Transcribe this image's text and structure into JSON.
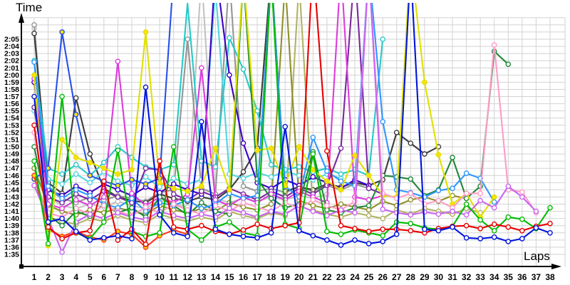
{
  "chart_data": {
    "type": "line",
    "title": "",
    "ylabel": "Time",
    "xlabel": "Laps",
    "grid": true,
    "legend_position": "none",
    "x_ticks": [
      1,
      2,
      3,
      4,
      5,
      6,
      7,
      8,
      9,
      10,
      11,
      12,
      13,
      14,
      15,
      16,
      17,
      18,
      19,
      20,
      21,
      22,
      23,
      24,
      25,
      26,
      27,
      28,
      29,
      30,
      31,
      32,
      33,
      34,
      35,
      36,
      37,
      38
    ],
    "y_tick_labels_ascending": [
      "1:35",
      "1:36",
      "1:37",
      "1:38",
      "1:39",
      "1:40",
      "1:41",
      "1:42",
      "1:43",
      "1:44",
      "1:45",
      "1:46",
      "1:47",
      "1:48",
      "1:49",
      "1:50",
      "1:51",
      "1:52",
      "1:53",
      "1:54",
      "1:55",
      "1:56",
      "1:57",
      "1:58",
      "1:59",
      "2:00",
      "2:01",
      "2:02",
      "2:03",
      "2:04",
      "2:05"
    ],
    "y_axis_min_seconds": 95,
    "y_axis_max_seconds": 125,
    "y_axis_step_seconds": 1,
    "note": "Lap time chart, ~20 series (one per driver). Values are lap times in seconds (95 = 1:35). Values above 128 s represent pit/out laps whose spikes run off the top of the plot. null = no lap recorded (retired).",
    "marker_shape": "circle",
    "series": [
      {
        "name": "silver",
        "color": "#c2c2c2",
        "marker_fill": "#ffffff",
        "lap_seconds": [
          126.5,
          103,
          101.8,
          101.4,
          102,
          101.6,
          102.4,
          101.8,
          101.4,
          102.6,
          102,
          101.6,
          134,
          102.8,
          102.2,
          102.8,
          102.4,
          103,
          102.6,
          103.2,
          102.8,
          103.4,
          null,
          null,
          null,
          null,
          null,
          null,
          null,
          null,
          null,
          null,
          null,
          null,
          null,
          null,
          null,
          null
        ]
      },
      {
        "name": "gray",
        "color": "#969696",
        "marker_fill": "#ffffff",
        "lap_seconds": [
          127,
          104,
          102.8,
          102.2,
          103,
          102.5,
          103.2,
          102.8,
          102.4,
          103.6,
          104,
          125,
          104.2,
          103.4,
          134,
          104.5,
          103.8,
          104.2,
          103.6,
          104.4,
          103.8,
          104.6,
          104,
          104.8,
          104.2,
          null,
          null,
          null,
          null,
          null,
          null,
          null,
          null,
          null,
          null,
          null,
          null,
          null
        ]
      },
      {
        "name": "black",
        "color": "#3c3c3c",
        "marker_fill": "#ffffff",
        "lap_seconds": [
          125.8,
          105,
          103.5,
          116.8,
          109,
          104.2,
          103,
          102.5,
          102.2,
          103.4,
          102.8,
          102.4,
          103,
          102.6,
          104,
          106.5,
          109.8,
          134.5,
          103.8,
          104.4,
          104,
          104.8,
          104.4,
          105,
          104.6,
          105.4,
          112,
          110.5,
          109,
          110,
          null,
          null,
          null,
          null,
          null,
          null,
          null,
          null
        ]
      },
      {
        "name": "khaki",
        "color": "#b2b264",
        "marker_fill": "#ffffff",
        "lap_seconds": [
          106,
          100.2,
          99.6,
          99.2,
          100,
          99.6,
          100.4,
          99.8,
          99.4,
          100.6,
          100,
          99.6,
          100.2,
          99.8,
          101,
          100.4,
          100,
          100.8,
          100.4,
          133,
          101.2,
          100.6,
          100.2,
          100.8,
          100.4,
          100,
          101.2,
          100.6,
          101.4,
          101,
          100.6,
          101.4,
          100.8,
          null,
          null,
          null,
          null,
          null
        ]
      },
      {
        "name": "olive",
        "color": "#8f8f2d",
        "marker_fill": "#ffffff",
        "lap_seconds": [
          107,
          101.8,
          101,
          100.5,
          101.2,
          100.8,
          101.5,
          101,
          100.6,
          101.8,
          101.2,
          100.8,
          101.4,
          101,
          102.2,
          101.6,
          101.2,
          102,
          133,
          102.5,
          101.8,
          101.4,
          102,
          101.6,
          101.2,
          102.4,
          101.8,
          102.6,
          103,
          102.4,
          103.2,
          102.8,
          null,
          null,
          null,
          null,
          null,
          null
        ]
      },
      {
        "name": "turquoise",
        "color": "#52d6e0",
        "marker_fill": "#ffffff",
        "lap_seconds": [
          115,
          105.5,
          104.8,
          106.2,
          105,
          106.5,
          105.2,
          104.6,
          105.8,
          104.4,
          105.6,
          104.8,
          105.4,
          132,
          106.2,
          105.6,
          106.4,
          105.8,
          106.6,
          106,
          105.4,
          106.2,
          105.6,
          null,
          null,
          null,
          null,
          null,
          null,
          null,
          null,
          null,
          null,
          null,
          null,
          null,
          null,
          null
        ]
      },
      {
        "name": "cyan",
        "color": "#28c8c8",
        "marker_fill": "#ffffff",
        "lap_seconds": [
          122,
          107,
          106.2,
          107.5,
          106,
          107.8,
          110,
          108.5,
          107.2,
          106.8,
          107.5,
          130,
          108,
          107.2,
          125.2,
          120.8,
          115,
          107.5,
          106.8,
          107.2,
          106.5,
          107,
          106.2,
          106.8,
          106,
          125,
          null,
          null,
          null,
          null,
          null,
          null,
          null,
          null,
          null,
          null,
          null,
          null
        ]
      },
      {
        "name": "navy",
        "color": "#3c00c8",
        "marker_fill": "#ffffff",
        "lap_seconds": [
          119,
          104,
          103.2,
          104.5,
          103.6,
          104.8,
          104,
          103.2,
          104.4,
          103.6,
          104.8,
          104,
          103.4,
          135,
          120,
          110.5,
          105,
          104.2,
          105.4,
          104.6,
          105.8,
          105,
          104.2,
          105.4,
          104.6,
          null,
          null,
          null,
          null,
          null,
          null,
          null,
          null,
          null,
          null,
          null,
          null,
          null
        ]
      },
      {
        "name": "purple",
        "color": "#7a28a0",
        "marker_fill": "#ffffff",
        "lap_seconds": [
          115.5,
          103,
          102.2,
          103.4,
          102.6,
          103.8,
          103,
          102.2,
          107,
          106.8,
          103.4,
          102.6,
          103.8,
          103,
          104.2,
          103.4,
          102.6,
          103.8,
          103,
          104.2,
          103.4,
          104.6,
          109.8,
          135,
          104.2,
          103.4,
          null,
          null,
          null,
          null,
          null,
          null,
          null,
          null,
          null,
          null,
          null,
          null
        ]
      },
      {
        "name": "magenta",
        "color": "#dc3cdc",
        "marker_fill": "#ffffff",
        "lap_seconds": [
          119.5,
          102,
          101.4,
          102.6,
          101.8,
          103,
          121.9,
          103.5,
          101.8,
          103,
          102.2,
          103.4,
          121,
          102.6,
          101.8,
          103,
          102.2,
          103.4,
          102.6,
          103.8,
          103,
          102.2,
          135,
          103,
          102.6,
          103.2,
          null,
          null,
          null,
          null,
          null,
          null,
          null,
          null,
          null,
          null,
          null,
          null
        ]
      },
      {
        "name": "blue-yellow-markers",
        "color": "#2850e6",
        "marker_fill": "#ffe000",
        "lap_seconds": [
          105.5,
          107,
          126,
          114.5,
          106,
          105.2,
          104.6,
          105.4,
          104.8,
          105.6,
          134,
          null,
          null,
          null,
          null,
          null,
          null,
          null,
          null,
          null,
          null,
          null,
          null,
          null,
          null,
          null,
          null,
          null,
          null,
          null,
          null,
          null,
          null,
          null,
          null,
          null,
          null,
          null
        ]
      },
      {
        "name": "red-yellow-markers",
        "color": "#ff3820",
        "marker_fill": "#ffe000",
        "lap_seconds": [
          106,
          98.5,
          97.5,
          98.2,
          97.4,
          97,
          98.2,
          97.8,
          96,
          97.6,
          98.4,
          97.8,
          null,
          null,
          null,
          null,
          null,
          null,
          null,
          null,
          null,
          null,
          null,
          null,
          null,
          null,
          null,
          null,
          null,
          null,
          null,
          null,
          null,
          null,
          null,
          null,
          null,
          null
        ]
      },
      {
        "name": "darkgreen",
        "color": "#208838",
        "marker_fill": "#ffffff",
        "lap_seconds": [
          110,
          100.5,
          99,
          101,
          100.3,
          102,
          100.8,
          101.5,
          100.2,
          103,
          101.8,
          100.5,
          102.2,
          101,
          100.6,
          133.5,
          105.5,
          102.8,
          101.5,
          102,
          109.3,
          101.2,
          100.8,
          101.5,
          101.8,
          106,
          105.8,
          105.5,
          103.2,
          104,
          108.5,
          102.8,
          104.5,
          123.3,
          121.5,
          null,
          null,
          null
        ]
      },
      {
        "name": "dodgerblue",
        "color": "#2e96ff",
        "marker_fill": "#ffffff",
        "lap_seconds": [
          121.8,
          104.5,
          102.8,
          104,
          103.2,
          102,
          101.5,
          102.8,
          101,
          102.2,
          101.8,
          102.6,
          101.4,
          102,
          103.5,
          102.8,
          103.2,
          134,
          104.5,
          103,
          111.3,
          106.6,
          105.2,
          104.6,
          135,
          113.5,
          104,
          103.6,
          103,
          103.9,
          104.2,
          106.3,
          105.6,
          102.3,
          null,
          null,
          null,
          null
        ]
      },
      {
        "name": "yellow",
        "color": "#e0e000",
        "marker_fill": "#ffe000",
        "lap_seconds": [
          120,
          96.2,
          111,
          108.5,
          107.8,
          107,
          106.2,
          106.8,
          126,
          105,
          104.2,
          103.8,
          104.5,
          109.8,
          104,
          134,
          109.5,
          109.8,
          104.6,
          110,
          106.8,
          105.2,
          104,
          108.8,
          106,
          103.2,
          103,
          136,
          119,
          108.9,
          102,
          103.5,
          100.2,
          103,
          null,
          null,
          null,
          null
        ]
      },
      {
        "name": "pink",
        "color": "#ff9cc8",
        "marker_fill": "#ffffff",
        "lap_seconds": [
          112,
          100.8,
          100.2,
          101.4,
          100.6,
          101.8,
          101,
          100.4,
          101.6,
          100.8,
          102,
          101.2,
          100.6,
          101.8,
          101,
          102.2,
          101.6,
          101,
          102.2,
          101.4,
          102.6,
          101.8,
          101.2,
          102.4,
          135,
          103.5,
          102.8,
          103.5,
          102,
          102.5,
          101.5,
          103.5,
          103.5,
          124.2,
          104,
          103.7,
          100.8,
          null
        ]
      },
      {
        "name": "violet",
        "color": "#c864f0",
        "marker_fill": "#ffffff",
        "lap_seconds": [
          104.6,
          100,
          95.3,
          99.5,
          100.6,
          100,
          100.8,
          100.2,
          99.8,
          101,
          100.4,
          100,
          100.6,
          100.2,
          101.4,
          100.8,
          100.2,
          101,
          100.6,
          101.8,
          101,
          100.4,
          101.2,
          100.8,
          135,
          101.3,
          100.8,
          100.5,
          100.9,
          100.6,
          101,
          100.5,
          102.5,
          101.5,
          104.5,
          103,
          101,
          null
        ]
      },
      {
        "name": "green",
        "color": "#00bc00",
        "marker_fill": "#ffffff",
        "lap_seconds": [
          108,
          96.5,
          117,
          98,
          97.2,
          99.5,
          109.5,
          98.2,
          97.5,
          98,
          110,
          98.5,
          97,
          98.8,
          99.5,
          98,
          97.6,
          134,
          99.2,
          98.6,
          109,
          98.2,
          97.8,
          98.4,
          98,
          97.6,
          99.5,
          99.3,
          98.7,
          98.5,
          98.9,
          102,
          99.8,
          98.3,
          100.2,
          99.9,
          98.6,
          101.5
        ]
      },
      {
        "name": "red",
        "color": "#e60000",
        "marker_fill": "#ffffff",
        "lap_seconds": [
          113,
          98.8,
          97.2,
          98,
          98.3,
          105.2,
          97,
          98.5,
          96.4,
          108,
          98.8,
          98.5,
          99,
          98.2,
          97.8,
          98.4,
          99.2,
          98.6,
          99,
          99.4,
          136,
          109.4,
          99,
          98.6,
          98.2,
          98.5,
          98.5,
          98.3,
          98,
          98.6,
          98.9,
          99,
          98.6,
          99.2,
          98.8,
          98.3,
          98.9,
          99.3
        ]
      },
      {
        "name": "blue",
        "color": "#0014dc",
        "marker_fill": "#ffffff",
        "lap_seconds": [
          117,
          99.5,
          100,
          98.2,
          97,
          97.3,
          97.6,
          97.2,
          118.3,
          100.5,
          98,
          97.5,
          113.5,
          98.5,
          97.8,
          97.5,
          97.3,
          98,
          112.8,
          98.3,
          97.6,
          97,
          96.3,
          97,
          96.5,
          96.8,
          97.8,
          135,
          98.5,
          98.3,
          98.8,
          97.3,
          97.2,
          97.4,
          96.8,
          97.2,
          98.7,
          98
        ]
      }
    ],
    "style": {
      "grid_color": "#d2d2d2",
      "axis_color": "#000000",
      "background": "#ffffff"
    }
  }
}
